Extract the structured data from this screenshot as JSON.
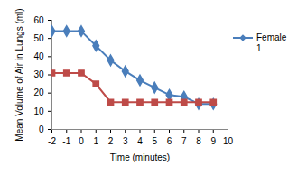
{
  "chart_data": {
    "type": "line",
    "x_label": "Time (minutes)",
    "y_label": "Mean Volume of Air in Lungs (ml)",
    "x": [
      -2,
      -1,
      0,
      1,
      2,
      3,
      4,
      5,
      6,
      7,
      8,
      9
    ],
    "series": [
      {
        "name": "Female 1",
        "color": "#4a7ebb",
        "marker": "diamond",
        "values": [
          54,
          54,
          54,
          46,
          38,
          32,
          27,
          23,
          19,
          18,
          14,
          14
        ]
      },
      {
        "color": "#be4b48",
        "marker": "square",
        "values": [
          31,
          31,
          31,
          25,
          15,
          15,
          15,
          15,
          15,
          15,
          15,
          15
        ]
      }
    ],
    "xlim": [
      -2,
      10
    ],
    "xticks": [
      -2,
      -1,
      0,
      1,
      2,
      3,
      4,
      5,
      6,
      7,
      8,
      9,
      10
    ],
    "ylim": [
      0,
      60
    ],
    "yticks": [
      0,
      10,
      20,
      30,
      40,
      50,
      60
    ],
    "grid": false,
    "legend": "right"
  }
}
